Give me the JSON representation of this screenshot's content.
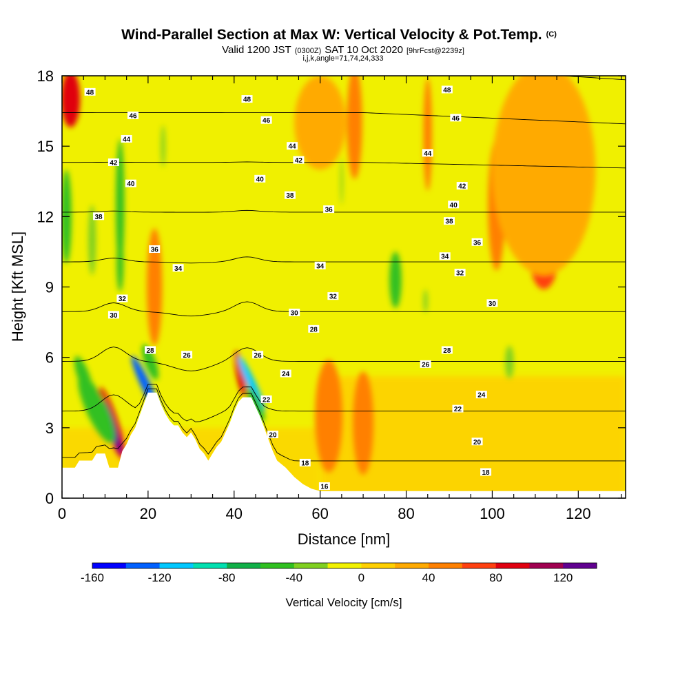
{
  "chart_data": {
    "type": "heatmap",
    "title": "Wind-Parallel Section at Max W: Vertical Velocity & Pot.Temp.",
    "title_mark": "(C)",
    "subtitle": {
      "valid_prefix": "Valid 1200 JST",
      "utc": "(0300Z)",
      "date": "SAT 10 Oct 2020",
      "forecast": "[9hrFcst@2239z]"
    },
    "subtitle2": "i,j,k,angle=71,74,24,333",
    "xlabel": "Distance [nm]",
    "ylabel": "Height [Kft MSL]",
    "xlim": [
      0,
      131
    ],
    "ylim": [
      0,
      18
    ],
    "xticks": [
      0,
      20,
      40,
      60,
      80,
      100,
      120
    ],
    "yticks": [
      0,
      3,
      6,
      9,
      12,
      15,
      18
    ],
    "colorbar": {
      "title": "Vertical Velocity [cm/s]",
      "range": [
        -160,
        140
      ],
      "step": 20,
      "tick_values": [
        -160,
        -120,
        -80,
        -40,
        0,
        40,
        80,
        120
      ],
      "colors": [
        "#0000ff",
        "#0060ff",
        "#00c8ff",
        "#00e0b0",
        "#10b048",
        "#30c020",
        "#80d020",
        "#f2f200",
        "#ffd000",
        "#ffaa00",
        "#ff8000",
        "#ff4010",
        "#e00010",
        "#a00050",
        "#600090"
      ]
    },
    "terrain": [
      [
        0,
        1.3
      ],
      [
        3,
        1.3
      ],
      [
        4,
        1.6
      ],
      [
        6,
        1.6
      ],
      [
        7,
        1.6
      ],
      [
        8,
        1.9
      ],
      [
        10,
        1.9
      ],
      [
        11,
        1.3
      ],
      [
        13,
        1.3
      ],
      [
        14,
        2.0
      ],
      [
        15,
        2.3
      ],
      [
        16,
        2.7
      ],
      [
        17,
        3.0
      ],
      [
        18,
        3.5
      ],
      [
        19,
        4.0
      ],
      [
        20,
        4.5
      ],
      [
        22,
        4.5
      ],
      [
        23,
        4.0
      ],
      [
        24,
        3.6
      ],
      [
        25,
        3.3
      ],
      [
        26,
        3.1
      ],
      [
        27,
        3.1
      ],
      [
        28,
        2.8
      ],
      [
        29,
        2.6
      ],
      [
        30,
        2.8
      ],
      [
        31,
        2.5
      ],
      [
        32,
        2.1
      ],
      [
        33,
        1.9
      ],
      [
        34,
        1.6
      ],
      [
        35,
        1.9
      ],
      [
        36,
        2.2
      ],
      [
        37,
        2.4
      ],
      [
        38,
        2.8
      ],
      [
        39,
        3.2
      ],
      [
        40,
        3.7
      ],
      [
        41,
        4.1
      ],
      [
        42,
        4.3
      ],
      [
        44,
        4.3
      ],
      [
        45,
        3.9
      ],
      [
        46,
        3.5
      ],
      [
        47,
        3.0
      ],
      [
        48,
        2.5
      ],
      [
        49,
        2.0
      ],
      [
        50,
        1.6
      ],
      [
        52,
        1.3
      ],
      [
        54,
        0.9
      ],
      [
        56,
        0.6
      ],
      [
        58,
        0.4
      ],
      [
        60,
        0.3
      ],
      [
        131,
        0.3
      ]
    ],
    "velocity_features": [
      {
        "x": 11.5,
        "y": 3.2,
        "rx": 1.6,
        "ry": 1.6,
        "rot": -18,
        "w": 90
      },
      {
        "x": 11.8,
        "y": 3.0,
        "rx": 0.9,
        "ry": 1.2,
        "rot": -18,
        "w": 120
      },
      {
        "x": 8.0,
        "y": 3.8,
        "rx": 2.4,
        "ry": 1.6,
        "rot": -25,
        "w": -55
      },
      {
        "x": 5.0,
        "y": 5.2,
        "rx": 1.4,
        "ry": 0.9,
        "rot": -20,
        "w": -50
      },
      {
        "x": 19.5,
        "y": 4.8,
        "rx": 1.1,
        "ry": 1.4,
        "rot": -25,
        "w": -140
      },
      {
        "x": 20.5,
        "y": 5.8,
        "rx": 1.3,
        "ry": 0.8,
        "rot": -20,
        "w": -50
      },
      {
        "x": 41.5,
        "y": 5.3,
        "rx": 1.0,
        "ry": 1.0,
        "rot": -10,
        "w": 90
      },
      {
        "x": 44.0,
        "y": 4.9,
        "rx": 1.0,
        "ry": 1.3,
        "rot": -25,
        "w": -120
      },
      {
        "x": 45.0,
        "y": 4.0,
        "rx": 1.2,
        "ry": 0.8,
        "rot": -25,
        "w": -50
      },
      {
        "x": 2.0,
        "y": 17.0,
        "rx": 2.2,
        "ry": 1.2,
        "rot": 0,
        "w": 80
      },
      {
        "x": 1.0,
        "y": 12.0,
        "rx": 1.2,
        "ry": 2.0,
        "rot": 0,
        "w": -55
      },
      {
        "x": 7.0,
        "y": 11.0,
        "rx": 0.9,
        "ry": 1.5,
        "rot": 0,
        "w": -40
      },
      {
        "x": 13.5,
        "y": 12.5,
        "rx": 1.0,
        "ry": 2.8,
        "rot": 0,
        "w": -45
      },
      {
        "x": 13.5,
        "y": 10.0,
        "rx": 0.8,
        "ry": 1.2,
        "rot": 0,
        "w": -60
      },
      {
        "x": 23.5,
        "y": 15.0,
        "rx": 0.5,
        "ry": 0.9,
        "rot": 0,
        "w": -40
      },
      {
        "x": 21.5,
        "y": 9.0,
        "rx": 1.8,
        "ry": 2.5,
        "rot": 0,
        "w": 40
      },
      {
        "x": 62.0,
        "y": 3.5,
        "rx": 3.2,
        "ry": 2.4,
        "rot": 0,
        "w": 40
      },
      {
        "x": 70.0,
        "y": 3.2,
        "rx": 2.4,
        "ry": 2.2,
        "rot": 0,
        "w": 40
      },
      {
        "x": 68.0,
        "y": 16.0,
        "rx": 1.8,
        "ry": 2.4,
        "rot": 0,
        "w": 40
      },
      {
        "x": 85.0,
        "y": 15.5,
        "rx": 1.0,
        "ry": 2.4,
        "rot": 0,
        "w": 55
      },
      {
        "x": 101.0,
        "y": 12.5,
        "rx": 2.0,
        "ry": 2.8,
        "rot": 0,
        "w": 55
      },
      {
        "x": 112.0,
        "y": 10.5,
        "rx": 3.5,
        "ry": 1.6,
        "rot": 0,
        "w": 60
      },
      {
        "x": 77.5,
        "y": 9.3,
        "rx": 1.4,
        "ry": 1.2,
        "rot": 0,
        "w": -45
      },
      {
        "x": 84.5,
        "y": 8.4,
        "rx": 0.5,
        "ry": 0.5,
        "rot": 0,
        "w": -40
      },
      {
        "x": 104.0,
        "y": 5.8,
        "rx": 1.0,
        "ry": 0.7,
        "rot": 0,
        "w": -40
      },
      {
        "x": 65.0,
        "y": 13.5,
        "rx": 0.3,
        "ry": 1.0,
        "rot": 0,
        "w": -40
      },
      {
        "x": 112.0,
        "y": 14.0,
        "rx": 12.0,
        "ry": 4.5,
        "rot": 0,
        "w": 30
      },
      {
        "x": 60.0,
        "y": 16.0,
        "rx": 6.0,
        "ry": 2.0,
        "rot": 0,
        "w": 30
      }
    ],
    "contour_levels": [
      16,
      18,
      20,
      22,
      24,
      26,
      28,
      30,
      32,
      34,
      36,
      38,
      40,
      42,
      44,
      46,
      48
    ],
    "contour_labels": [
      {
        "x": 6.5,
        "y": 17.3,
        "v": "48"
      },
      {
        "x": 43,
        "y": 17.0,
        "v": "48"
      },
      {
        "x": 89.5,
        "y": 17.4,
        "v": "48"
      },
      {
        "x": 16.5,
        "y": 16.3,
        "v": "46"
      },
      {
        "x": 47.5,
        "y": 16.1,
        "v": "46"
      },
      {
        "x": 91.5,
        "y": 16.2,
        "v": "46"
      },
      {
        "x": 15,
        "y": 15.3,
        "v": "44"
      },
      {
        "x": 53.5,
        "y": 15.0,
        "v": "44"
      },
      {
        "x": 85,
        "y": 14.7,
        "v": "44"
      },
      {
        "x": 12,
        "y": 14.3,
        "v": "42"
      },
      {
        "x": 55,
        "y": 14.4,
        "v": "42"
      },
      {
        "x": 93,
        "y": 13.3,
        "v": "42"
      },
      {
        "x": 16,
        "y": 13.4,
        "v": "40"
      },
      {
        "x": 46,
        "y": 13.6,
        "v": "40"
      },
      {
        "x": 91,
        "y": 12.5,
        "v": "40"
      },
      {
        "x": 53,
        "y": 12.9,
        "v": "38"
      },
      {
        "x": 8.5,
        "y": 12.0,
        "v": "38"
      },
      {
        "x": 90,
        "y": 11.8,
        "v": "38"
      },
      {
        "x": 62,
        "y": 12.3,
        "v": "36"
      },
      {
        "x": 21.5,
        "y": 10.6,
        "v": "36"
      },
      {
        "x": 96.5,
        "y": 10.9,
        "v": "36"
      },
      {
        "x": 27,
        "y": 9.8,
        "v": "34"
      },
      {
        "x": 60,
        "y": 9.9,
        "v": "34"
      },
      {
        "x": 89,
        "y": 10.3,
        "v": "34"
      },
      {
        "x": 14,
        "y": 8.5,
        "v": "32"
      },
      {
        "x": 63,
        "y": 8.6,
        "v": "32"
      },
      {
        "x": 92.5,
        "y": 9.6,
        "v": "32"
      },
      {
        "x": 12,
        "y": 7.8,
        "v": "30"
      },
      {
        "x": 54,
        "y": 7.9,
        "v": "30"
      },
      {
        "x": 100,
        "y": 8.3,
        "v": "30"
      },
      {
        "x": 58.5,
        "y": 7.2,
        "v": "28"
      },
      {
        "x": 20.5,
        "y": 6.3,
        "v": "28"
      },
      {
        "x": 89.5,
        "y": 6.3,
        "v": "28"
      },
      {
        "x": 29,
        "y": 6.1,
        "v": "26"
      },
      {
        "x": 84.5,
        "y": 5.7,
        "v": "26"
      },
      {
        "x": 45.5,
        "y": 6.1,
        "v": "26"
      },
      {
        "x": 52,
        "y": 5.3,
        "v": "24"
      },
      {
        "x": 97.5,
        "y": 4.4,
        "v": "24"
      },
      {
        "x": 47.5,
        "y": 4.2,
        "v": "22"
      },
      {
        "x": 92,
        "y": 3.8,
        "v": "22"
      },
      {
        "x": 49,
        "y": 2.7,
        "v": "20"
      },
      {
        "x": 96.5,
        "y": 2.4,
        "v": "20"
      },
      {
        "x": 56.5,
        "y": 1.5,
        "v": "18"
      },
      {
        "x": 98.5,
        "y": 1.1,
        "v": "18"
      },
      {
        "x": 61,
        "y": 0.5,
        "v": "16"
      }
    ]
  }
}
